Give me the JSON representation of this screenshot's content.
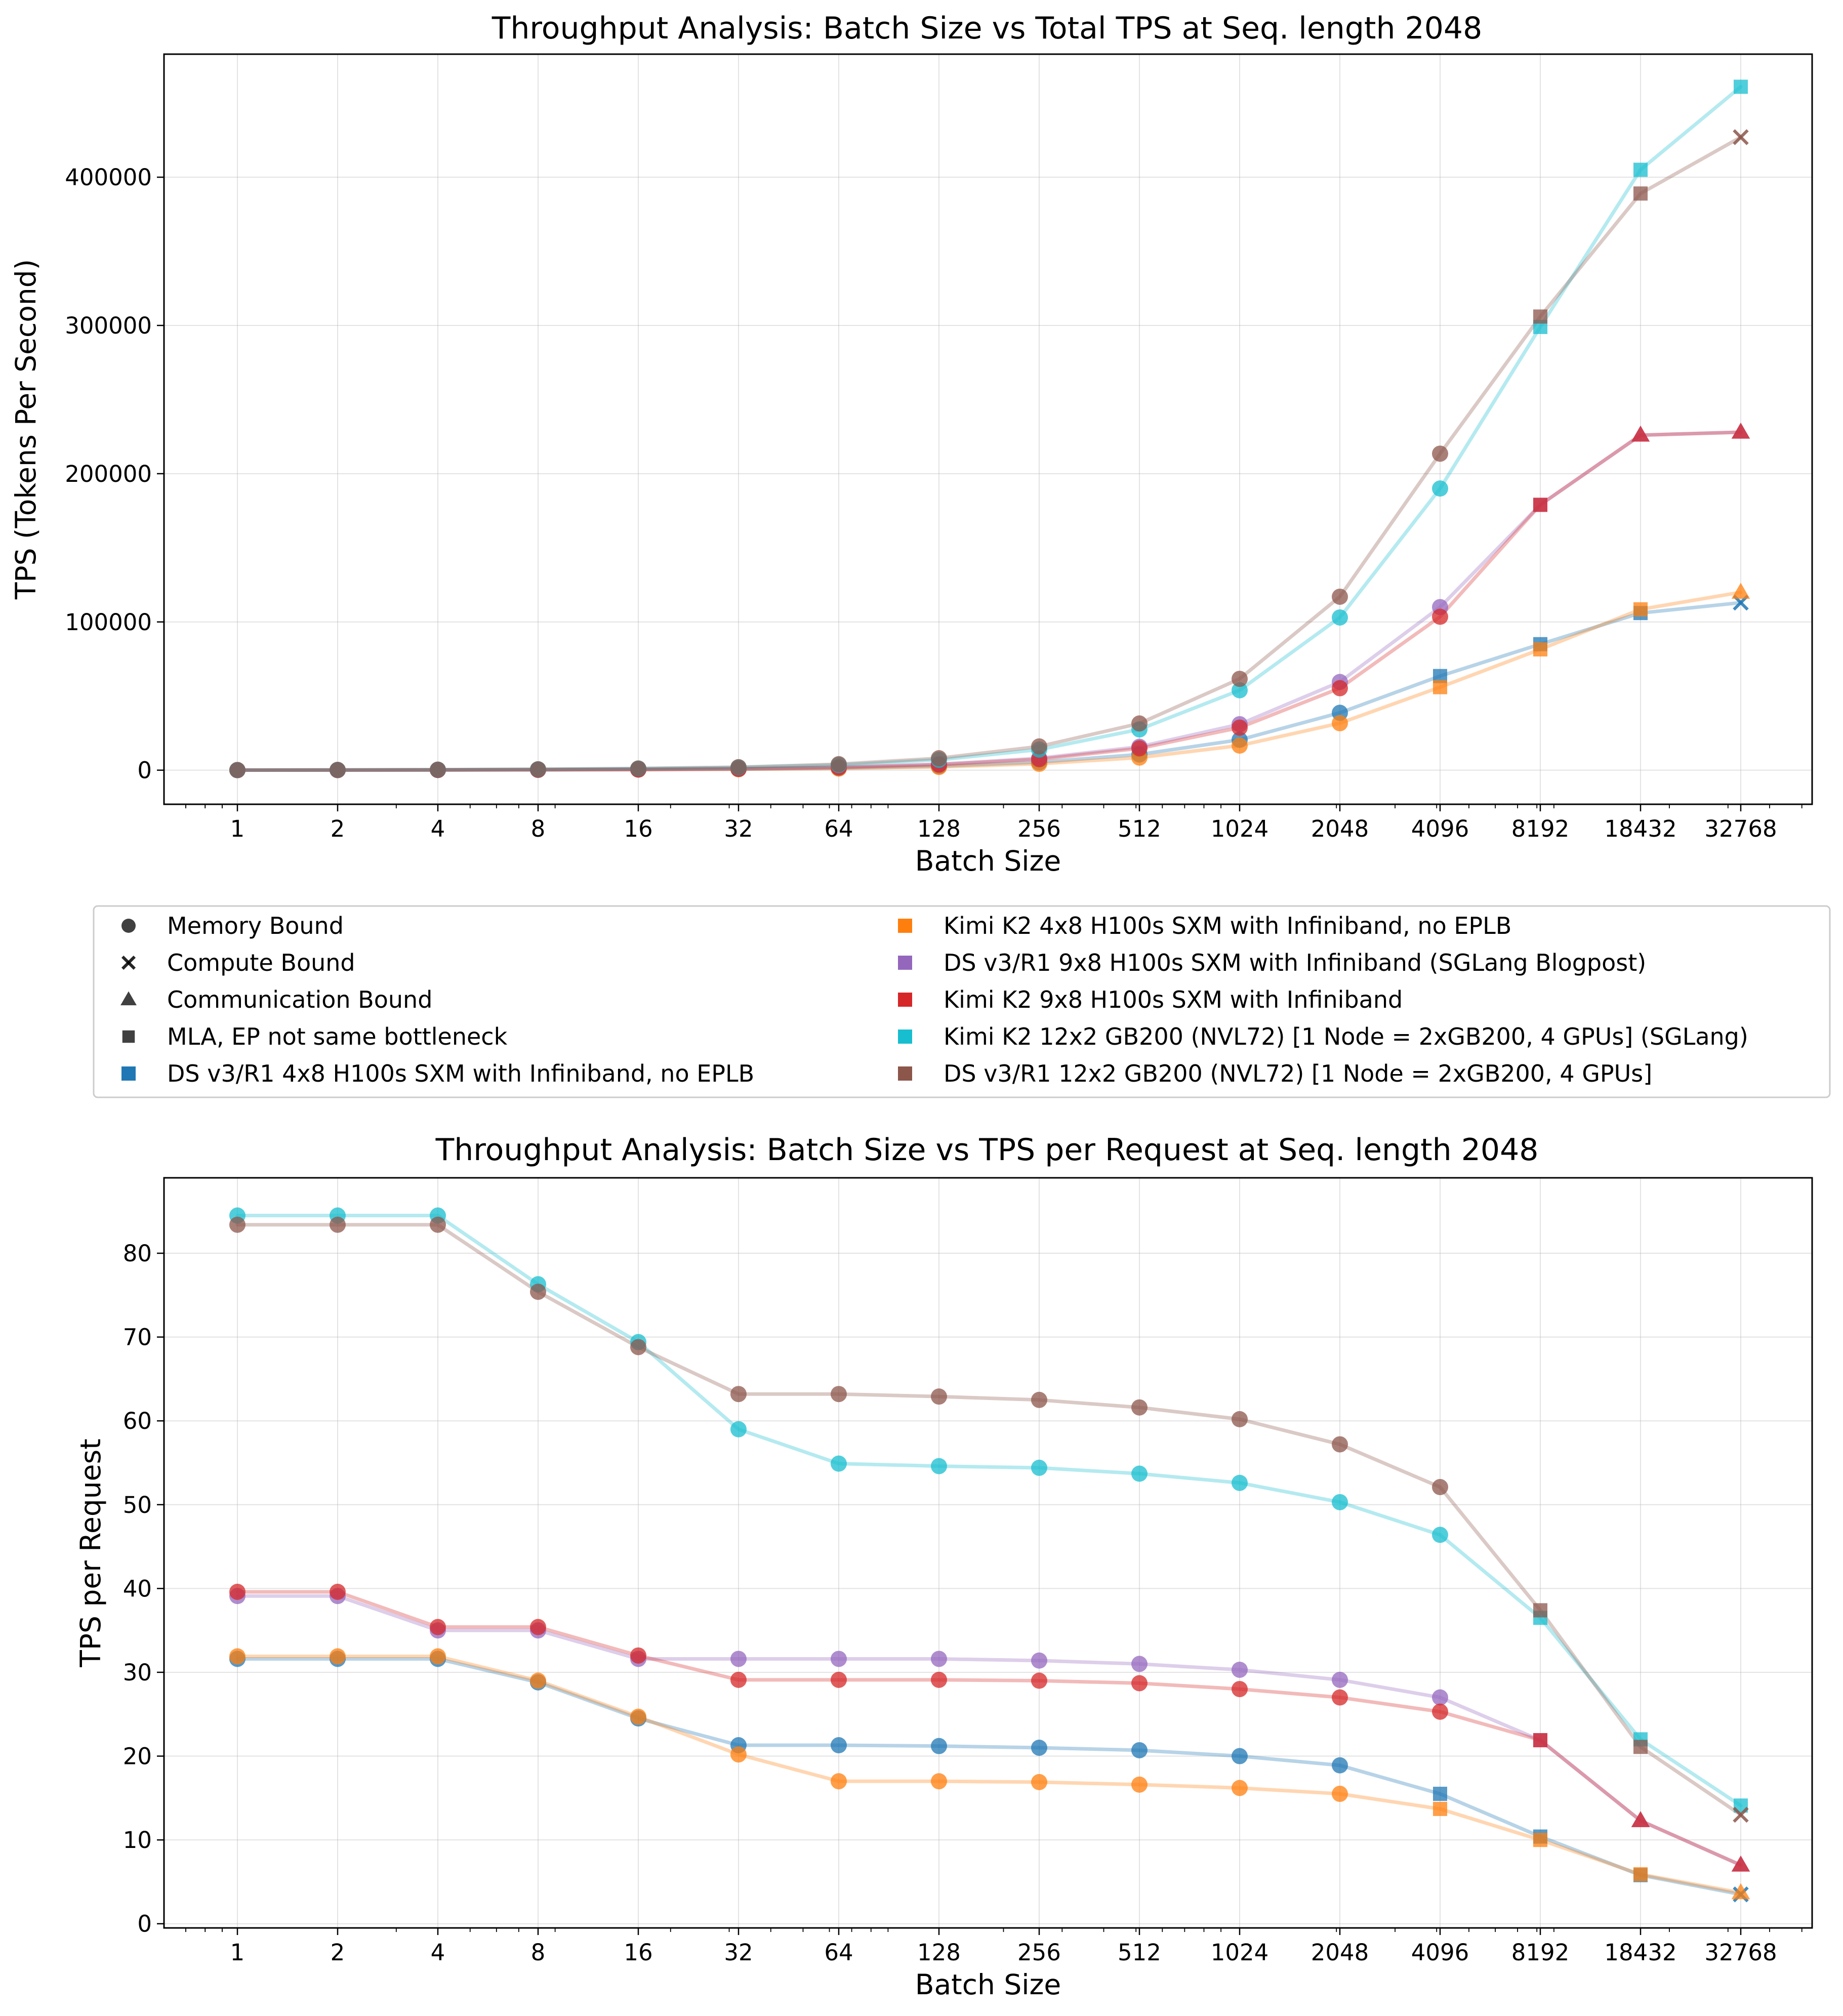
{
  "chart_data": [
    {
      "type": "line",
      "title": "Throughput Analysis: Batch Size vs Total TPS at Seq. length 2048",
      "xlabel": "Batch Size",
      "ylabel": "TPS (Tokens Per Second)",
      "x_scale": "log2",
      "x": [
        1,
        2,
        4,
        8,
        16,
        32,
        64,
        128,
        256,
        512,
        1024,
        2048,
        4096,
        8192,
        18432,
        32768
      ],
      "xticklabels": [
        "1",
        "2",
        "4",
        "8",
        "16",
        "32",
        "64",
        "128",
        "256",
        "512",
        "1024",
        "2048",
        "4096",
        "8192",
        "18432",
        "32768"
      ],
      "ylim": [
        -23000,
        483000
      ],
      "yticks": [
        0,
        100000,
        200000,
        300000,
        400000
      ],
      "yticklabels": [
        "0",
        "100000",
        "200000",
        "300000",
        "400000"
      ],
      "series": [
        {
          "name": "DS v3/R1 4x8 H100s SXM with Infiniband, no EPLB",
          "color": "#1f77b4",
          "values": [
            32,
            63,
            126,
            230,
            392,
            680,
            1360,
            2700,
            5400,
            10600,
            20500,
            38700,
            63500,
            85000,
            106000,
            113000
          ],
          "markers": [
            "memory",
            "memory",
            "memory",
            "memory",
            "memory",
            "memory",
            "memory",
            "memory",
            "memory",
            "memory",
            "memory",
            "memory",
            "mla",
            "mla",
            "mla",
            "compute"
          ]
        },
        {
          "name": "Kimi K2 4x8 H100s SXM with Infiniband, no EPLB",
          "color": "#ff7f0e",
          "values": [
            32,
            64,
            128,
            232,
            395,
            645,
            1090,
            2170,
            4300,
            8500,
            16600,
            31700,
            56000,
            81500,
            108500,
            120000
          ],
          "markers": [
            "memory",
            "memory",
            "memory",
            "memory",
            "memory",
            "memory",
            "memory",
            "memory",
            "memory",
            "memory",
            "memory",
            "memory",
            "mla",
            "mla",
            "mla",
            "comm"
          ]
        },
        {
          "name": "DS v3/R1 9x8 H100s SXM with Infiniband (SGLang Blogpost)",
          "color": "#9467bd",
          "values": [
            39,
            78,
            140,
            280,
            505,
            1010,
            2020,
            4040,
            8050,
            15800,
            31000,
            59500,
            110000,
            179000,
            226000,
            228000
          ],
          "markers": [
            "memory",
            "memory",
            "memory",
            "memory",
            "memory",
            "memory",
            "memory",
            "memory",
            "memory",
            "memory",
            "memory",
            "memory",
            "memory",
            "mla",
            "comm",
            "comm"
          ]
        },
        {
          "name": "Kimi K2 9x8 H100s SXM with Infiniband",
          "color": "#d62728",
          "values": [
            40,
            79,
            141,
            283,
            512,
            930,
            1860,
            3720,
            7400,
            14700,
            28700,
            55300,
            103500,
            179000,
            226000,
            228000
          ],
          "markers": [
            "memory",
            "memory",
            "memory",
            "memory",
            "memory",
            "memory",
            "memory",
            "memory",
            "memory",
            "memory",
            "memory",
            "memory",
            "memory",
            "mla",
            "comm",
            "comm"
          ]
        },
        {
          "name": "Kimi K2 12x2 GB200 (NVL72) [1 Node = 2xGB200, 4 GPUs] (SGLang)",
          "color": "#17becf",
          "values": [
            85,
            169,
            338,
            610,
            1110,
            1890,
            3510,
            6990,
            13900,
            27500,
            53900,
            103000,
            190000,
            299000,
            405000,
            461000
          ],
          "markers": [
            "memory",
            "memory",
            "memory",
            "memory",
            "memory",
            "memory",
            "memory",
            "memory",
            "memory",
            "memory",
            "memory",
            "memory",
            "memory",
            "mla",
            "mla",
            "mla"
          ]
        },
        {
          "name": "DS v3/R1 12x2 GB200 (NVL72) [1 Node = 2xGB200, 4 GPUs]",
          "color": "#8c564b",
          "values": [
            83,
            167,
            334,
            603,
            1100,
            2020,
            4040,
            8050,
            16000,
            31500,
            61600,
            117000,
            213500,
            306000,
            389000,
            427000
          ],
          "markers": [
            "memory",
            "memory",
            "memory",
            "memory",
            "memory",
            "memory",
            "memory",
            "memory",
            "memory",
            "memory",
            "memory",
            "memory",
            "memory",
            "mla",
            "mla",
            "compute"
          ]
        }
      ]
    },
    {
      "type": "line",
      "title": "Throughput Analysis: Batch Size vs TPS per Request at Seq. length 2048",
      "xlabel": "Batch Size",
      "ylabel": "TPS per Request",
      "x_scale": "log2",
      "x": [
        1,
        2,
        4,
        8,
        16,
        32,
        64,
        128,
        256,
        512,
        1024,
        2048,
        4096,
        8192,
        18432,
        32768
      ],
      "xticklabels": [
        "1",
        "2",
        "4",
        "8",
        "16",
        "32",
        "64",
        "128",
        "256",
        "512",
        "1024",
        "2048",
        "4096",
        "8192",
        "18432",
        "32768"
      ],
      "ylim": [
        -0.5,
        89
      ],
      "yticks": [
        0,
        10,
        20,
        30,
        40,
        50,
        60,
        70,
        80
      ],
      "yticklabels": [
        "0",
        "10",
        "20",
        "30",
        "40",
        "50",
        "60",
        "70",
        "80"
      ],
      "series": [
        {
          "name": "DS v3/R1 4x8 H100s SXM with Infiniband, no EPLB",
          "color": "#1f77b4",
          "values": [
            31.6,
            31.6,
            31.6,
            28.8,
            24.5,
            21.3,
            21.3,
            21.2,
            21.0,
            20.7,
            20.0,
            18.9,
            15.5,
            10.4,
            5.8,
            3.5
          ],
          "markers": [
            "memory",
            "memory",
            "memory",
            "memory",
            "memory",
            "memory",
            "memory",
            "memory",
            "memory",
            "memory",
            "memory",
            "memory",
            "mla",
            "mla",
            "mla",
            "compute"
          ]
        },
        {
          "name": "Kimi K2 4x8 H100s SXM with Infiniband, no EPLB",
          "color": "#ff7f0e",
          "values": [
            31.9,
            31.9,
            31.9,
            29.0,
            24.7,
            20.2,
            17.0,
            17.0,
            16.9,
            16.6,
            16.2,
            15.5,
            13.7,
            10.0,
            5.9,
            3.7
          ],
          "markers": [
            "memory",
            "memory",
            "memory",
            "memory",
            "memory",
            "memory",
            "memory",
            "memory",
            "memory",
            "memory",
            "memory",
            "memory",
            "mla",
            "mla",
            "mla",
            "comm"
          ]
        },
        {
          "name": "DS v3/R1 9x8 H100s SXM with Infiniband (SGLang Blogpost)",
          "color": "#9467bd",
          "values": [
            39.1,
            39.1,
            35.0,
            35.0,
            31.6,
            31.6,
            31.6,
            31.6,
            31.4,
            31.0,
            30.3,
            29.1,
            27.0,
            21.9,
            12.3,
            7.0
          ],
          "markers": [
            "memory",
            "memory",
            "memory",
            "memory",
            "memory",
            "memory",
            "memory",
            "memory",
            "memory",
            "memory",
            "memory",
            "memory",
            "memory",
            "mla",
            "comm",
            "comm"
          ]
        },
        {
          "name": "Kimi K2 9x8 H100s SXM with Infiniband",
          "color": "#d62728",
          "values": [
            39.6,
            39.6,
            35.4,
            35.4,
            32.0,
            29.1,
            29.1,
            29.1,
            29.0,
            28.7,
            28.0,
            27.0,
            25.3,
            21.9,
            12.3,
            7.0
          ],
          "markers": [
            "memory",
            "memory",
            "memory",
            "memory",
            "memory",
            "memory",
            "memory",
            "memory",
            "memory",
            "memory",
            "memory",
            "memory",
            "memory",
            "mla",
            "comm",
            "comm"
          ]
        },
        {
          "name": "Kimi K2 12x2 GB200 (NVL72) [1 Node = 2xGB200, 4 GPUs] (SGLang)",
          "color": "#17becf",
          "values": [
            84.5,
            84.5,
            84.5,
            76.3,
            69.4,
            59.0,
            54.9,
            54.6,
            54.4,
            53.7,
            52.6,
            50.3,
            46.4,
            36.5,
            22.0,
            14.1
          ],
          "markers": [
            "memory",
            "memory",
            "memory",
            "memory",
            "memory",
            "memory",
            "memory",
            "memory",
            "memory",
            "memory",
            "memory",
            "memory",
            "memory",
            "mla",
            "mla",
            "mla"
          ]
        },
        {
          "name": "DS v3/R1 12x2 GB200 (NVL72) [1 Node = 2xGB200, 4 GPUs]",
          "color": "#8c564b",
          "values": [
            83.4,
            83.4,
            83.4,
            75.4,
            68.8,
            63.2,
            63.2,
            62.9,
            62.5,
            61.6,
            60.2,
            57.2,
            52.1,
            37.4,
            21.1,
            13.0
          ],
          "markers": [
            "memory",
            "memory",
            "memory",
            "memory",
            "memory",
            "memory",
            "memory",
            "memory",
            "memory",
            "memory",
            "memory",
            "memory",
            "memory",
            "mla",
            "mla",
            "compute"
          ]
        }
      ]
    }
  ],
  "legend": {
    "marker_entries": [
      {
        "key": "memory",
        "label": "Memory Bound"
      },
      {
        "key": "compute",
        "label": "Compute Bound"
      },
      {
        "key": "comm",
        "label": "Communication Bound"
      },
      {
        "key": "mla",
        "label": "MLA, EP not same bottleneck"
      }
    ],
    "series_entries": [
      {
        "label": "DS v3/R1 4x8 H100s SXM with Infiniband, no EPLB",
        "color": "#1f77b4"
      },
      {
        "label": "Kimi K2 4x8 H100s SXM with Infiniband, no EPLB",
        "color": "#ff7f0e"
      },
      {
        "label": "DS v3/R1 9x8 H100s SXM with Infiniband (SGLang Blogpost)",
        "color": "#9467bd"
      },
      {
        "label": "Kimi K2 9x8 H100s SXM with Infiniband",
        "color": "#d62728"
      },
      {
        "label": "Kimi K2 12x2 GB200 (NVL72) [1 Node = 2xGB200, 4 GPUs] (SGLang)",
        "color": "#17becf"
      },
      {
        "label": "DS v3/R1 12x2 GB200 (NVL72) [1 Node = 2xGB200, 4 GPUs]",
        "color": "#8c564b"
      }
    ]
  }
}
